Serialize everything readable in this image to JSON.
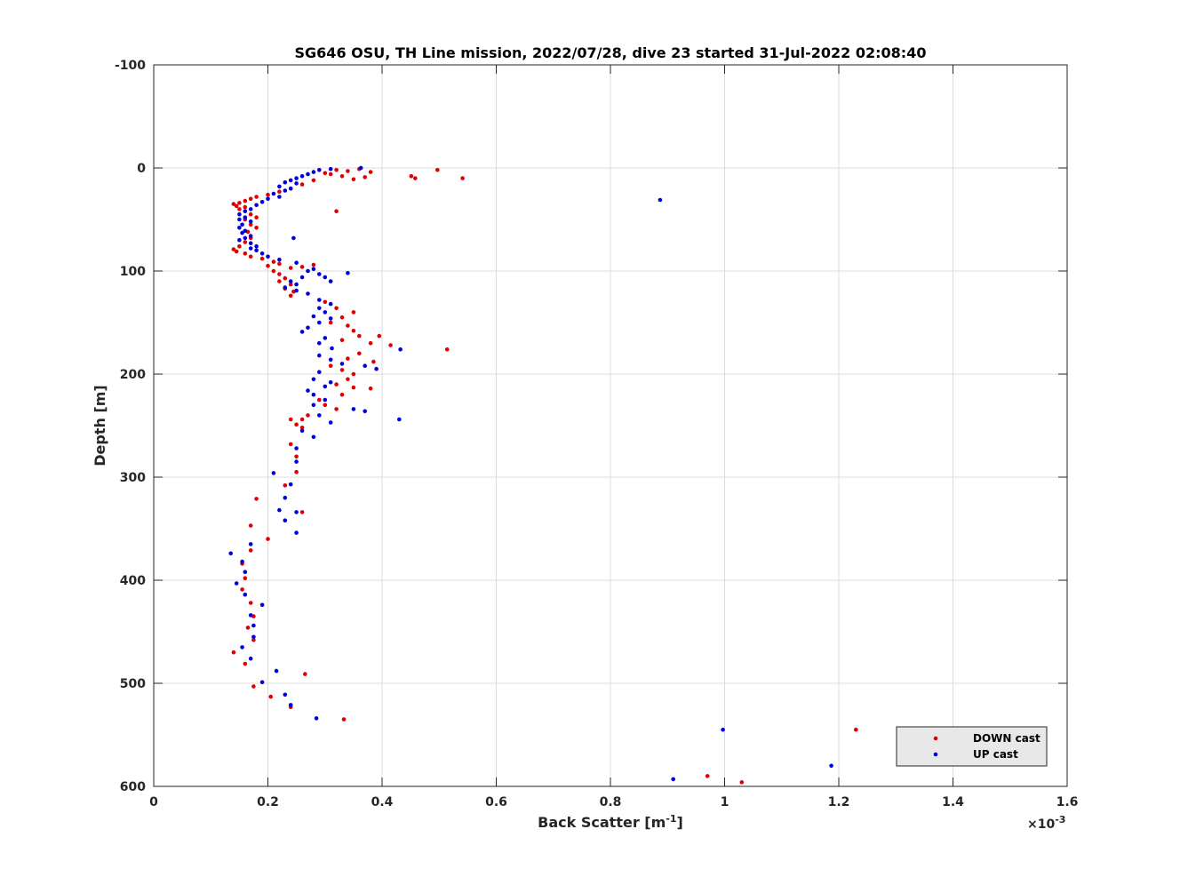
{
  "chart_data": {
    "type": "scatter",
    "title": "SG646 OSU, TH Line mission, 2022/07/28, dive 23 started 31-Jul-2022 02:08:40",
    "xlabel": "Back Scatter [m",
    "xlabel_exponent": "-1",
    "xlabel_suffix": "]",
    "ylabel": "Depth [m]",
    "x_multiplier_base": "×10",
    "x_multiplier_exponent": "-3",
    "xlim": [
      0,
      1.6
    ],
    "ylim": [
      -100,
      600
    ],
    "y_reversed": true,
    "grid": true,
    "legend_position": "bottom-right",
    "x_ticks": [
      {
        "value": 0,
        "label": "0"
      },
      {
        "value": 0.2,
        "label": "0.2"
      },
      {
        "value": 0.4,
        "label": "0.4"
      },
      {
        "value": 0.6,
        "label": "0.6"
      },
      {
        "value": 0.8,
        "label": "0.8"
      },
      {
        "value": 1.0,
        "label": "1"
      },
      {
        "value": 1.2,
        "label": "1.2"
      },
      {
        "value": 1.4,
        "label": "1.4"
      },
      {
        "value": 1.6,
        "label": "1.6"
      }
    ],
    "y_ticks": [
      {
        "value": -100,
        "label": "-100"
      },
      {
        "value": 0,
        "label": "0"
      },
      {
        "value": 100,
        "label": "100"
      },
      {
        "value": 200,
        "label": "200"
      },
      {
        "value": 300,
        "label": "300"
      },
      {
        "value": 400,
        "label": "400"
      },
      {
        "value": 500,
        "label": "500"
      },
      {
        "value": 600,
        "label": "600"
      }
    ],
    "series": [
      {
        "name": "DOWN cast",
        "color": "#e00000",
        "points": [
          [
            0.497,
            2
          ],
          [
            0.541,
            10
          ],
          [
            0.451,
            8
          ],
          [
            0.458,
            10
          ],
          [
            0.38,
            4
          ],
          [
            0.36,
            1
          ],
          [
            0.34,
            3
          ],
          [
            0.32,
            2
          ],
          [
            0.31,
            6
          ],
          [
            0.33,
            8
          ],
          [
            0.3,
            5
          ],
          [
            0.35,
            11
          ],
          [
            0.37,
            9
          ],
          [
            0.32,
            42
          ],
          [
            0.28,
            12
          ],
          [
            0.26,
            16
          ],
          [
            0.24,
            20
          ],
          [
            0.22,
            23
          ],
          [
            0.2,
            26
          ],
          [
            0.18,
            28
          ],
          [
            0.17,
            30
          ],
          [
            0.16,
            32
          ],
          [
            0.15,
            34
          ],
          [
            0.14,
            35
          ],
          [
            0.145,
            37
          ],
          [
            0.16,
            38
          ],
          [
            0.15,
            40
          ],
          [
            0.17,
            45
          ],
          [
            0.18,
            48
          ],
          [
            0.16,
            50
          ],
          [
            0.17,
            55
          ],
          [
            0.18,
            58
          ],
          [
            0.165,
            62
          ],
          [
            0.17,
            68
          ],
          [
            0.16,
            72
          ],
          [
            0.15,
            76
          ],
          [
            0.14,
            79
          ],
          [
            0.145,
            81
          ],
          [
            0.16,
            83
          ],
          [
            0.17,
            86
          ],
          [
            0.19,
            88
          ],
          [
            0.21,
            91
          ],
          [
            0.22,
            93
          ],
          [
            0.2,
            95
          ],
          [
            0.24,
            97
          ],
          [
            0.21,
            100
          ],
          [
            0.22,
            103
          ],
          [
            0.23,
            107
          ],
          [
            0.22,
            110
          ],
          [
            0.24,
            113
          ],
          [
            0.23,
            117
          ],
          [
            0.245,
            120
          ],
          [
            0.24,
            124
          ],
          [
            0.26,
            96
          ],
          [
            0.28,
            94
          ],
          [
            0.3,
            130
          ],
          [
            0.32,
            136
          ],
          [
            0.35,
            140
          ],
          [
            0.33,
            145
          ],
          [
            0.31,
            150
          ],
          [
            0.34,
            153
          ],
          [
            0.35,
            158
          ],
          [
            0.36,
            163
          ],
          [
            0.33,
            167
          ],
          [
            0.38,
            170
          ],
          [
            0.395,
            163
          ],
          [
            0.415,
            172
          ],
          [
            0.514,
            176
          ],
          [
            0.36,
            180
          ],
          [
            0.34,
            185
          ],
          [
            0.385,
            188
          ],
          [
            0.31,
            192
          ],
          [
            0.33,
            196
          ],
          [
            0.35,
            200
          ],
          [
            0.34,
            205
          ],
          [
            0.32,
            210
          ],
          [
            0.35,
            213
          ],
          [
            0.38,
            214
          ],
          [
            0.33,
            220
          ],
          [
            0.29,
            225
          ],
          [
            0.3,
            230
          ],
          [
            0.32,
            234
          ],
          [
            0.27,
            240
          ],
          [
            0.26,
            244
          ],
          [
            0.24,
            244
          ],
          [
            0.26,
            252
          ],
          [
            0.25,
            249
          ],
          [
            0.24,
            268
          ],
          [
            0.25,
            280
          ],
          [
            0.25,
            295
          ],
          [
            0.23,
            308
          ],
          [
            0.18,
            321
          ],
          [
            0.26,
            334
          ],
          [
            0.17,
            347
          ],
          [
            0.2,
            360
          ],
          [
            0.17,
            371
          ],
          [
            0.155,
            384
          ],
          [
            0.16,
            398
          ],
          [
            0.155,
            409
          ],
          [
            0.17,
            422
          ],
          [
            0.175,
            435
          ],
          [
            0.165,
            446
          ],
          [
            0.175,
            458
          ],
          [
            0.14,
            470
          ],
          [
            0.16,
            481
          ],
          [
            0.265,
            491
          ],
          [
            0.175,
            503
          ],
          [
            0.205,
            513
          ],
          [
            0.24,
            523
          ],
          [
            0.333,
            535
          ],
          [
            1.23,
            545
          ],
          [
            1.52,
            566
          ],
          [
            1.4,
            578
          ],
          [
            0.97,
            590
          ],
          [
            1.03,
            596
          ]
        ]
      },
      {
        "name": "UP cast",
        "color": "#0000dd",
        "points": [
          [
            0.363,
            0
          ],
          [
            0.31,
            1
          ],
          [
            0.29,
            2
          ],
          [
            0.28,
            4
          ],
          [
            0.27,
            6
          ],
          [
            0.26,
            8
          ],
          [
            0.25,
            10
          ],
          [
            0.24,
            12
          ],
          [
            0.23,
            14
          ],
          [
            0.25,
            15
          ],
          [
            0.22,
            18
          ],
          [
            0.24,
            20
          ],
          [
            0.23,
            22
          ],
          [
            0.21,
            25
          ],
          [
            0.22,
            28
          ],
          [
            0.2,
            30
          ],
          [
            0.19,
            33
          ],
          [
            0.18,
            36
          ],
          [
            0.887,
            31
          ],
          [
            0.17,
            40
          ],
          [
            0.16,
            42
          ],
          [
            0.15,
            45
          ],
          [
            0.16,
            48
          ],
          [
            0.15,
            50
          ],
          [
            0.17,
            52
          ],
          [
            0.155,
            55
          ],
          [
            0.15,
            58
          ],
          [
            0.16,
            61
          ],
          [
            0.155,
            63
          ],
          [
            0.17,
            66
          ],
          [
            0.16,
            68
          ],
          [
            0.15,
            70
          ],
          [
            0.245,
            68
          ],
          [
            0.17,
            73
          ],
          [
            0.18,
            76
          ],
          [
            0.17,
            78
          ],
          [
            0.18,
            80
          ],
          [
            0.19,
            83
          ],
          [
            0.2,
            86
          ],
          [
            0.22,
            89
          ],
          [
            0.25,
            92
          ],
          [
            0.28,
            98
          ],
          [
            0.27,
            100
          ],
          [
            0.29,
            103
          ],
          [
            0.26,
            106
          ],
          [
            0.24,
            110
          ],
          [
            0.25,
            113
          ],
          [
            0.23,
            116
          ],
          [
            0.25,
            119
          ],
          [
            0.27,
            122
          ],
          [
            0.3,
            106
          ],
          [
            0.31,
            110
          ],
          [
            0.34,
            102
          ],
          [
            0.29,
            128
          ],
          [
            0.31,
            132
          ],
          [
            0.29,
            136
          ],
          [
            0.3,
            140
          ],
          [
            0.28,
            144
          ],
          [
            0.31,
            146
          ],
          [
            0.29,
            150
          ],
          [
            0.27,
            155
          ],
          [
            0.26,
            159
          ],
          [
            0.3,
            165
          ],
          [
            0.29,
            170
          ],
          [
            0.312,
            175
          ],
          [
            0.432,
            176
          ],
          [
            0.29,
            182
          ],
          [
            0.31,
            186
          ],
          [
            0.33,
            190
          ],
          [
            0.37,
            192
          ],
          [
            0.39,
            195
          ],
          [
            0.29,
            198
          ],
          [
            0.28,
            205
          ],
          [
            0.31,
            208
          ],
          [
            0.3,
            212
          ],
          [
            0.27,
            216
          ],
          [
            0.28,
            220
          ],
          [
            0.3,
            225
          ],
          [
            0.28,
            230
          ],
          [
            0.35,
            234
          ],
          [
            0.37,
            236
          ],
          [
            0.29,
            240
          ],
          [
            0.43,
            244
          ],
          [
            0.31,
            247
          ],
          [
            0.28,
            261
          ],
          [
            0.26,
            255
          ],
          [
            0.25,
            272
          ],
          [
            0.25,
            285
          ],
          [
            0.21,
            296
          ],
          [
            0.24,
            307
          ],
          [
            0.23,
            320
          ],
          [
            0.22,
            332
          ],
          [
            0.25,
            334
          ],
          [
            0.23,
            342
          ],
          [
            0.25,
            354
          ],
          [
            0.17,
            365
          ],
          [
            0.135,
            374
          ],
          [
            0.155,
            382
          ],
          [
            0.16,
            392
          ],
          [
            0.145,
            403
          ],
          [
            0.16,
            414
          ],
          [
            0.19,
            424
          ],
          [
            0.17,
            434
          ],
          [
            0.175,
            444
          ],
          [
            0.175,
            455
          ],
          [
            0.155,
            465
          ],
          [
            0.17,
            476
          ],
          [
            0.215,
            488
          ],
          [
            0.19,
            499
          ],
          [
            0.23,
            511
          ],
          [
            0.24,
            521
          ],
          [
            0.285,
            534
          ],
          [
            0.997,
            545
          ],
          [
            1.506,
            558
          ],
          [
            1.187,
            580
          ],
          [
            0.91,
            593
          ]
        ]
      }
    ]
  }
}
